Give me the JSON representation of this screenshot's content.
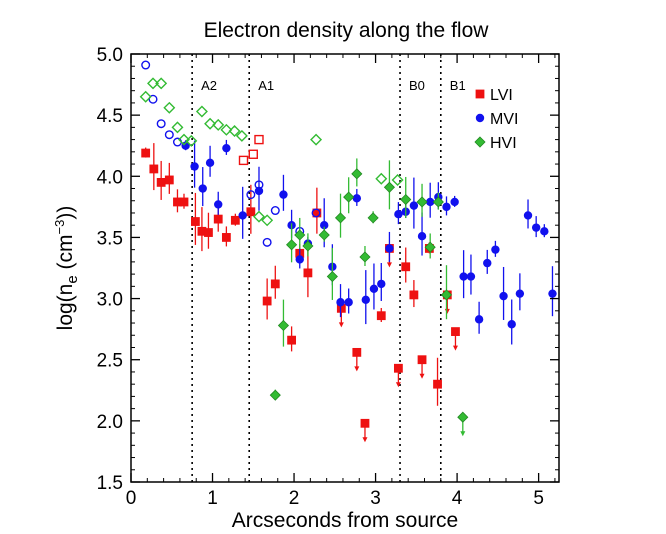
{
  "chart_data": {
    "type": "scatter",
    "title": "Electron density along the flow",
    "xlabel": "Arcseconds from source",
    "ylabel_main": "log(n",
    "ylabel_sub": "e",
    "ylabel_paren": " (cm",
    "ylabel_sup": "−3",
    "ylabel_end": "))",
    "xlim": [
      0,
      5.25
    ],
    "ylim": [
      1.5,
      5.0
    ],
    "x_ticks": [
      0,
      1,
      2,
      3,
      4,
      5
    ],
    "x_tick_labels": [
      "0",
      "1",
      "2",
      "3",
      "4",
      "5"
    ],
    "y_ticks": [
      1.5,
      2.0,
      2.5,
      3.0,
      3.5,
      4.0,
      4.5,
      5.0
    ],
    "y_tick_labels": [
      "1.5",
      "2.0",
      "2.5",
      "3.0",
      "3.5",
      "4.0",
      "4.5",
      "5.0"
    ],
    "regions": [
      {
        "label": "A2",
        "x": 0.75
      },
      {
        "label": "A1",
        "x": 1.45
      },
      {
        "label": "B0",
        "x": 3.3
      },
      {
        "label": "B1",
        "x": 3.8
      }
    ],
    "legend_position": "top-right",
    "series": [
      {
        "name": "LVI",
        "color": "#ee1111",
        "marker": "square",
        "open": [
          [
            1.38,
            4.13
          ],
          [
            1.57,
            4.3
          ],
          [
            1.5,
            4.18
          ]
        ],
        "filled": [
          [
            0.18,
            4.19
          ],
          [
            0.28,
            4.06
          ],
          [
            0.37,
            3.95
          ],
          [
            0.47,
            3.97
          ],
          [
            0.57,
            3.79
          ],
          [
            0.65,
            3.79
          ],
          [
            0.79,
            3.63
          ],
          [
            0.87,
            3.55
          ],
          [
            0.95,
            3.54
          ],
          [
            1.07,
            3.65
          ],
          [
            1.17,
            3.5
          ],
          [
            1.28,
            3.64
          ],
          [
            1.47,
            3.71
          ],
          [
            1.67,
            2.98
          ],
          [
            1.77,
            3.12
          ],
          [
            1.97,
            2.66
          ],
          [
            2.07,
            3.37
          ],
          [
            2.17,
            3.21
          ],
          [
            2.28,
            3.7
          ],
          [
            2.58,
            2.92
          ],
          [
            2.77,
            2.56
          ],
          [
            2.87,
            1.98
          ],
          [
            3.07,
            2.86
          ],
          [
            3.17,
            3.41
          ],
          [
            3.28,
            2.43
          ],
          [
            3.37,
            3.26
          ],
          [
            3.47,
            3.03
          ],
          [
            3.57,
            2.5
          ],
          [
            3.66,
            3.41
          ],
          [
            3.76,
            2.3
          ],
          [
            3.88,
            3.03
          ],
          [
            3.98,
            2.73
          ]
        ],
        "upper_limits": [
          2.58,
          2.77,
          2.87,
          3.17,
          3.28,
          3.57,
          3.88,
          3.98
        ]
      },
      {
        "name": "MVI",
        "color": "#1111ee",
        "marker": "circle",
        "open": [
          [
            0.18,
            4.91
          ],
          [
            0.27,
            4.63
          ],
          [
            0.37,
            4.43
          ],
          [
            0.47,
            4.34
          ],
          [
            0.57,
            4.28
          ],
          [
            1.47,
            3.85
          ],
          [
            1.57,
            3.93
          ],
          [
            1.67,
            3.46
          ],
          [
            1.77,
            3.72
          ],
          [
            2.07,
            3.55
          ],
          [
            2.27,
            3.7
          ]
        ],
        "filled": [
          [
            0.67,
            4.25
          ],
          [
            0.78,
            4.08
          ],
          [
            0.88,
            3.9
          ],
          [
            0.97,
            4.11
          ],
          [
            1.07,
            3.77
          ],
          [
            1.17,
            4.23
          ],
          [
            1.37,
            3.68
          ],
          [
            1.57,
            3.88
          ],
          [
            1.87,
            3.85
          ],
          [
            1.97,
            3.6
          ],
          [
            2.07,
            3.32
          ],
          [
            2.17,
            3.45
          ],
          [
            2.37,
            3.6
          ],
          [
            2.47,
            3.26
          ],
          [
            2.57,
            2.97
          ],
          [
            2.67,
            2.97
          ],
          [
            2.77,
            3.82
          ],
          [
            2.88,
            2.99
          ],
          [
            2.98,
            3.08
          ],
          [
            3.07,
            3.12
          ],
          [
            3.17,
            3.41
          ],
          [
            3.28,
            3.69
          ],
          [
            3.37,
            3.71
          ],
          [
            3.47,
            3.76
          ],
          [
            3.57,
            3.51
          ],
          [
            3.67,
            3.79
          ],
          [
            3.77,
            3.83
          ],
          [
            3.87,
            3.75
          ],
          [
            3.97,
            3.79
          ],
          [
            4.08,
            3.18
          ],
          [
            4.17,
            3.18
          ],
          [
            4.27,
            2.83
          ],
          [
            4.37,
            3.29
          ],
          [
            4.47,
            3.4
          ],
          [
            4.57,
            3.02
          ],
          [
            4.67,
            2.79
          ],
          [
            4.77,
            3.04
          ],
          [
            4.87,
            3.68
          ],
          [
            4.97,
            3.58
          ],
          [
            5.07,
            3.55
          ],
          [
            5.17,
            3.04
          ]
        ]
      },
      {
        "name": "HVI",
        "color": "#33bb33",
        "marker": "diamond",
        "open": [
          [
            0.18,
            4.65
          ],
          [
            0.27,
            4.76
          ],
          [
            0.37,
            4.76
          ],
          [
            0.47,
            4.56
          ],
          [
            0.57,
            4.4
          ],
          [
            0.65,
            4.3
          ],
          [
            0.74,
            4.29
          ],
          [
            0.87,
            4.53
          ],
          [
            0.97,
            4.43
          ],
          [
            1.07,
            4.42
          ],
          [
            1.17,
            4.38
          ],
          [
            1.27,
            4.37
          ],
          [
            1.36,
            4.33
          ],
          [
            1.57,
            3.67
          ],
          [
            1.67,
            3.64
          ],
          [
            2.27,
            4.3
          ],
          [
            3.07,
            3.98
          ],
          [
            3.27,
            3.97
          ]
        ],
        "filled": [
          [
            1.77,
            2.21
          ],
          [
            1.87,
            2.78
          ],
          [
            1.97,
            3.44
          ],
          [
            2.07,
            3.52
          ],
          [
            2.17,
            3.43
          ],
          [
            2.37,
            3.52
          ],
          [
            2.47,
            3.18
          ],
          [
            2.57,
            3.66
          ],
          [
            2.67,
            3.83
          ],
          [
            2.77,
            4.02
          ],
          [
            2.87,
            3.34
          ],
          [
            2.97,
            3.66
          ],
          [
            3.17,
            3.91
          ],
          [
            3.37,
            3.81
          ],
          [
            3.57,
            3.79
          ],
          [
            3.67,
            3.42
          ],
          [
            3.77,
            3.79
          ],
          [
            3.87,
            3.03
          ],
          [
            4.07,
            2.03
          ]
        ],
        "upper_limits": [
          4.07
        ]
      }
    ]
  }
}
